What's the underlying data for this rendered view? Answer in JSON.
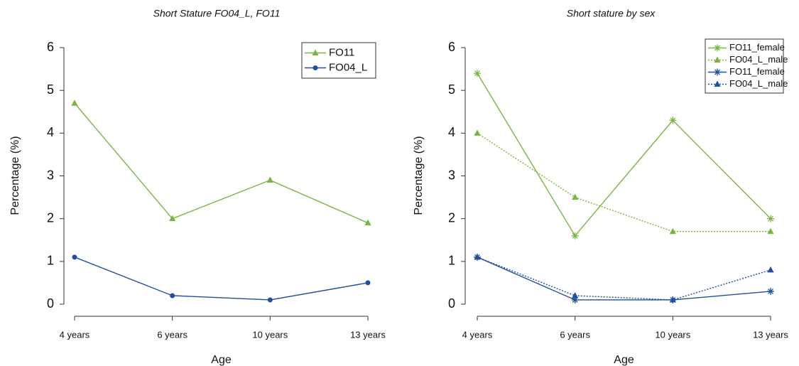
{
  "chart_data": [
    {
      "type": "line",
      "title": "Short Stature FO04_L, FO11",
      "x_label": "Age",
      "y_label": "Percentage (%)",
      "categories": [
        "4 years",
        "6 years",
        "10 years",
        "13 years"
      ],
      "ylim": [
        0,
        6
      ],
      "yticks": [
        0,
        1,
        2,
        3,
        4,
        5,
        6
      ],
      "legend": "top-right",
      "series": [
        {
          "name": "FO11",
          "color": "#79b540",
          "marker": "triangle",
          "dashed": false,
          "values": [
            4.7,
            2.0,
            2.9,
            1.9
          ]
        },
        {
          "name": "FO04_L",
          "color": "#1f4f9e",
          "marker": "circle",
          "dashed": false,
          "values": [
            1.1,
            0.2,
            0.1,
            0.5
          ]
        }
      ]
    },
    {
      "type": "line",
      "title": "Short stature by sex",
      "x_label": "Age",
      "y_label": "Percentage (%)",
      "categories": [
        "4 years",
        "6 years",
        "10 years",
        "13 years"
      ],
      "ylim": [
        0,
        6
      ],
      "yticks": [
        0,
        1,
        2,
        3,
        4,
        5,
        6
      ],
      "legend": "top-right",
      "series": [
        {
          "name": "FO11_female",
          "color": "#79b540",
          "marker": "star",
          "dashed": false,
          "values": [
            5.4,
            1.6,
            4.3,
            2.0
          ]
        },
        {
          "name": "FO04_L_male",
          "color": "#79b540",
          "marker": "triangle",
          "dashed": true,
          "values": [
            4.0,
            2.5,
            1.7,
            1.7
          ]
        },
        {
          "name": "FO11_female",
          "color": "#1f4f9e",
          "marker": "star",
          "dashed": false,
          "values": [
            1.1,
            0.1,
            0.1,
            0.3
          ]
        },
        {
          "name": "FO04_L_male",
          "color": "#1f4f9e",
          "marker": "triangle",
          "dashed": true,
          "values": [
            1.1,
            0.2,
            0.1,
            0.8
          ]
        }
      ]
    }
  ]
}
